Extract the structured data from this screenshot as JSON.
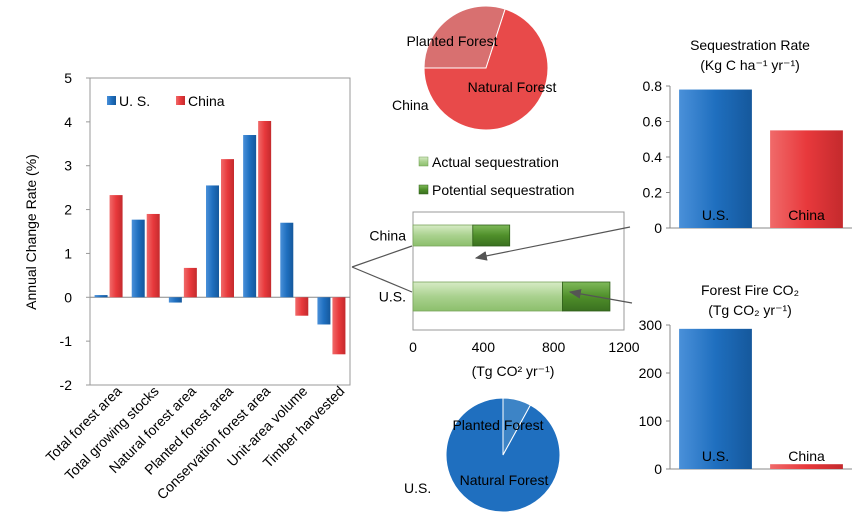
{
  "colors": {
    "us": "#1f6fbf",
    "china": "#e8393c",
    "actual": "#a9d18e",
    "potential": "#4f8f2a",
    "planted_china": "#d87070",
    "natural_china": "#e84a4a",
    "planted_us": "#3d84c6",
    "natural_us": "#1f6fbf"
  },
  "chart_data": [
    {
      "id": "annual-change",
      "type": "bar",
      "ylabel": "Annual Change Rate (%)",
      "ylim": [
        -2,
        5
      ],
      "yticks": [
        -2,
        -1,
        0,
        1,
        2,
        3,
        4,
        5
      ],
      "legend": "top-left",
      "categories": [
        "Total forest area",
        "Total growing stocks",
        "Natural forest area",
        "Planted forest area",
        "Conservation forest area",
        "Unit-area volume",
        "Timber harvested"
      ],
      "series": [
        {
          "name": "U. S.",
          "values": [
            0.05,
            1.77,
            -0.12,
            2.55,
            3.7,
            1.7,
            -0.62
          ]
        },
        {
          "name": "China",
          "values": [
            2.33,
            1.9,
            0.67,
            3.15,
            4.02,
            -0.42,
            -1.3
          ]
        }
      ]
    },
    {
      "id": "sequestration-bars",
      "type": "bar",
      "orientation": "horizontal",
      "xlabel": "(Tg CO² yr⁻¹)",
      "xlim": [
        0,
        1200
      ],
      "xticks": [
        0,
        400,
        800,
        1200
      ],
      "categories": [
        "China",
        "U.S."
      ],
      "series": [
        {
          "name": "Actual sequestration",
          "values": [
            340,
            850
          ]
        },
        {
          "name": "Potential sequestration",
          "values": [
            210,
            270
          ]
        }
      ]
    },
    {
      "id": "sequestration-rate",
      "type": "bar",
      "title": "Sequestration Rate",
      "subtitle": "(Kg C ha⁻¹ yr⁻¹)",
      "ylim": [
        0,
        0.8
      ],
      "yticks": [
        "0",
        "0.2",
        "0.4",
        "0.6",
        "0.8"
      ],
      "categories": [
        "U.S.",
        "China"
      ],
      "values": [
        0.78,
        0.55
      ]
    },
    {
      "id": "forest-fire",
      "type": "bar",
      "title": "Forest Fire CO₂",
      "subtitle": "(Tg CO₂ yr⁻¹)",
      "ylim": [
        0,
        300
      ],
      "yticks": [
        0,
        100,
        200,
        300
      ],
      "categories": [
        "U.S.",
        "China"
      ],
      "values": [
        292,
        10
      ]
    },
    {
      "id": "china-pie",
      "type": "pie",
      "label": "China",
      "slices": [
        {
          "name": "Planted Forest",
          "value": 30
        },
        {
          "name": "Natural Forest",
          "value": 70
        }
      ]
    },
    {
      "id": "us-pie",
      "type": "pie",
      "label": "U.S.",
      "slices": [
        {
          "name": "Planted Forest",
          "value": 8
        },
        {
          "name": "Natural Forest",
          "value": 92
        }
      ]
    }
  ]
}
